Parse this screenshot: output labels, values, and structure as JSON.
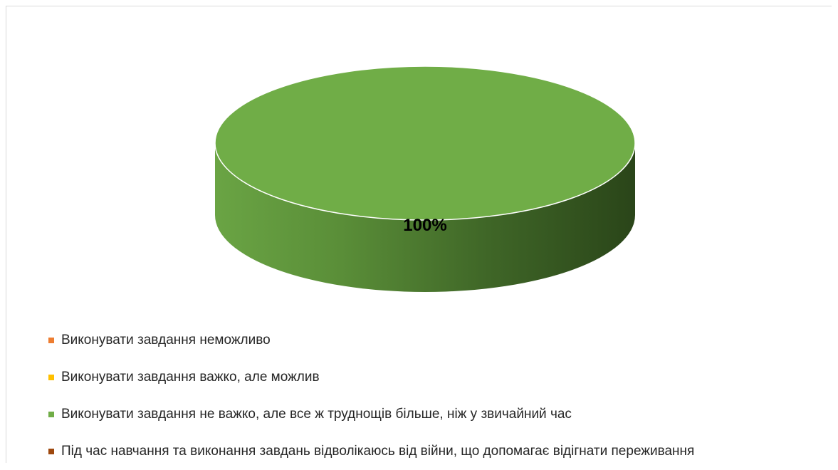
{
  "chart_data": {
    "type": "pie",
    "style": "3d",
    "title": "",
    "series": [
      {
        "categories": [
          "Виконувати завдання неможливо",
          "Виконувати завдання важко, але можлив",
          "Виконувати завдання не важко, але все ж труднощів більше, ніж у звичайний час",
          "Під час навчання та виконання завдань відволікаюсь від війни, що допомагає відігнати переживання"
        ],
        "values": [
          0,
          0,
          100,
          0
        ],
        "data_labels": [
          "",
          "",
          "100%",
          ""
        ]
      }
    ],
    "colors": [
      "#ed7d31",
      "#ffc000",
      "#70ad47",
      "#9e480e"
    ],
    "legend_position": "bottom-left"
  }
}
